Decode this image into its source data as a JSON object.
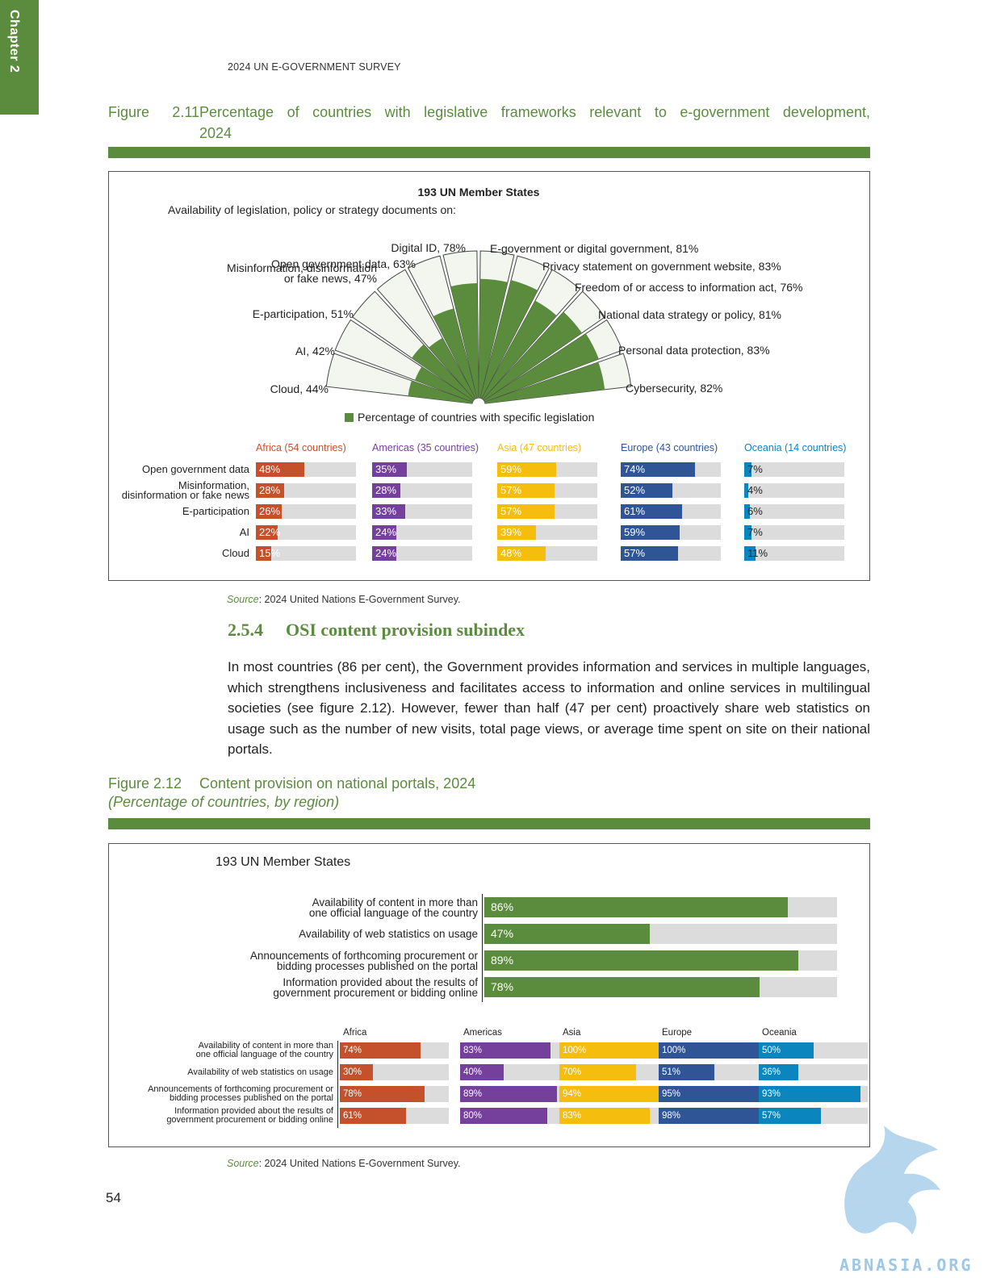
{
  "chapter_tab": "Chapter 2",
  "running_head": "2024 UN E-GOVERNMENT SURVEY",
  "fig211": {
    "number": "Figure 2.11",
    "title_line1": "Percentage of countries with legislative frameworks relevant to e-government development,",
    "title_line2": "2024",
    "heading": "193 UN Member States",
    "subheading": "Availability of legislation, policy or strategy documents on:",
    "legend": "Percentage of countries with specific legislation",
    "source_label": "Source",
    "source_text": ": 2024 United Nations E-Government Survey."
  },
  "chart_data": [
    {
      "type": "radial-bar",
      "title": "193 UN Member States",
      "categories": [
        "Cloud",
        "AI",
        "E-participation",
        "Misinformation, disinformation or fake news",
        "Open government data",
        "Digital ID",
        "E-government or digital government",
        "Privacy statement on government website",
        "Freedom of or access to information act",
        "National data strategy or policy",
        "Personal data protection",
        "Cybersecurity"
      ],
      "values": [
        44,
        42,
        51,
        47,
        63,
        78,
        81,
        83,
        76,
        81,
        83,
        82
      ],
      "labels": [
        "Cloud, 44%",
        "AI, 42%",
        "E-participation, 51%",
        "Misinformation, disinformation|or fake news, 47%",
        "Open government data, 63%",
        "Digital ID, 78%",
        "E-government or digital government, 81%",
        "Privacy statement on government website, 83%",
        "Freedom of or access to information act, 76%",
        "National data strategy or policy, 81%",
        "Personal data protection, 83%",
        "Cybersecurity, 82%"
      ],
      "series": [
        {
          "name": "Percentage of countries with specific legislation",
          "values": [
            44,
            42,
            51,
            47,
            63,
            78,
            81,
            83,
            76,
            81,
            83,
            82
          ]
        }
      ],
      "colors": {
        "fill": "#5b8c3e",
        "track": "#f2f6ee",
        "stroke": "#444444"
      }
    },
    {
      "type": "bar",
      "orientation": "horizontal",
      "categories": [
        "Open government data",
        "Misinformation,|disinformation or fake news",
        "E-participation",
        "AI",
        "Cloud"
      ],
      "series": [
        {
          "name": "Africa (54 countries)",
          "color": "#c4512b",
          "values": [
            48,
            28,
            26,
            22,
            15
          ],
          "labels": [
            "48%",
            "28%",
            "26%",
            "22%",
            "15%"
          ]
        },
        {
          "name": "Americas (35 countries)",
          "color": "#74409b",
          "values": [
            35,
            28,
            33,
            24,
            24
          ],
          "labels": [
            "35%",
            "28%",
            "33%",
            "24%",
            "24%"
          ]
        },
        {
          "name": "Asia (47 countries)",
          "color": "#f5bd0e",
          "values": [
            59,
            57,
            57,
            39,
            48
          ],
          "labels": [
            "59%",
            "57%",
            "57%",
            "39%",
            "48%"
          ]
        },
        {
          "name": "Europe (43 countries)",
          "color": "#2f5597",
          "values": [
            74,
            52,
            61,
            59,
            57
          ],
          "labels": [
            "74%",
            "52%",
            "61%",
            "59%",
            "57%"
          ]
        },
        {
          "name": "Oceania (14 countries)",
          "color": "#0b85bd",
          "values": [
            7,
            4,
            6,
            7,
            11
          ],
          "labels": [
            "7%",
            "4%",
            "6%",
            "7%",
            "11%"
          ]
        }
      ],
      "xlim": [
        0,
        100
      ]
    },
    {
      "type": "bar",
      "orientation": "horizontal",
      "title": "193 UN Member States",
      "categories": [
        "Availability of content in more than|one official language of the country",
        "Availability of web statistics on usage",
        "Announcements of forthcoming procurement or|bidding processes published on the portal",
        "Information provided about the results of|government procurement or bidding online"
      ],
      "values": [
        86,
        47,
        89,
        78
      ],
      "labels": [
        "86%",
        "47%",
        "89%",
        "78%"
      ],
      "color": "#5b8c3e",
      "xlim": [
        0,
        100
      ]
    },
    {
      "type": "bar",
      "orientation": "horizontal",
      "categories": [
        "Availability of content in more than|one official language of the country",
        "Availability of web statistics on usage",
        "Announcements of forthcoming procurement or|bidding processes published on the portal",
        "Information provided about the results of|government procurement or bidding online"
      ],
      "series": [
        {
          "name": "Africa",
          "color": "#c4512b",
          "values": [
            74,
            30,
            78,
            61
          ],
          "labels": [
            "74%",
            "30%",
            "78%",
            "61%"
          ]
        },
        {
          "name": "Americas",
          "color": "#74409b",
          "values": [
            83,
            40,
            89,
            80
          ],
          "labels": [
            "83%",
            "40%",
            "89%",
            "80%"
          ]
        },
        {
          "name": "Asia",
          "color": "#f5bd0e",
          "values": [
            100,
            70,
            94,
            83
          ],
          "labels": [
            "100%",
            "70%",
            "94%",
            "83%"
          ]
        },
        {
          "name": "Europe",
          "color": "#2f5597",
          "values": [
            100,
            51,
            95,
            98
          ],
          "labels": [
            "100%",
            "51%",
            "95%",
            "98%"
          ]
        },
        {
          "name": "Oceania",
          "color": "#0b85bd",
          "values": [
            50,
            36,
            93,
            57
          ],
          "labels": [
            "50%",
            "36%",
            "93%",
            "57%"
          ]
        }
      ],
      "xlim": [
        0,
        100
      ]
    }
  ],
  "section": {
    "number": "2.5.4",
    "title": "OSI content provision subindex",
    "paragraph": "In most countries (86 per cent), the Government provides information and services in multiple languages, which strengthens inclusiveness and facilitates access to information and online services in multilingual societies (see figure 2.12). However, fewer than half (47 per cent) proactively share web statistics on usage such as the number of new visits, total page views, or average time spent on site on their national portals."
  },
  "fig212": {
    "number": "Figure 2.12",
    "title": "Content provision on national portals, 2024",
    "subtitle": "(Percentage of countries, by region)",
    "heading": "193 UN Member States",
    "source_label": "Source",
    "source_text": ": 2024 United Nations E-Government Survey."
  },
  "page_number": "54",
  "watermark": "ABNASIA.ORG"
}
